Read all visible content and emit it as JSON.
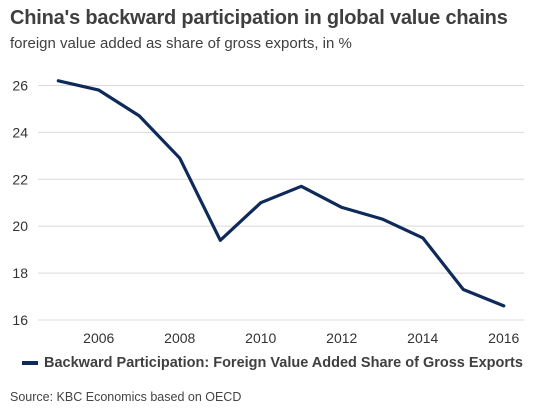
{
  "chart_data": {
    "type": "line",
    "title": "China's backward participation in global value chains",
    "subtitle": "foreign value added as share of gross exports, in %",
    "xlabel": "",
    "ylabel": "",
    "x": [
      2005,
      2006,
      2007,
      2008,
      2009,
      2010,
      2011,
      2012,
      2013,
      2014,
      2015,
      2016
    ],
    "x_ticks": [
      2006,
      2008,
      2010,
      2012,
      2014,
      2016
    ],
    "y_ticks": [
      16,
      18,
      20,
      22,
      24,
      26
    ],
    "ylim": [
      16,
      27
    ],
    "xlim": [
      2004.5,
      2016.5
    ],
    "grid": true,
    "legend_position": "bottom",
    "series": [
      {
        "name": "Backward Participation: Foreign Value Added Share of Gross Exports",
        "color": "#0e2a5a",
        "values": [
          26.2,
          25.8,
          24.7,
          22.9,
          19.4,
          21.0,
          21.7,
          20.8,
          20.3,
          19.5,
          17.3,
          16.6
        ]
      }
    ]
  },
  "source": "Source: KBC Economics based on OECD"
}
